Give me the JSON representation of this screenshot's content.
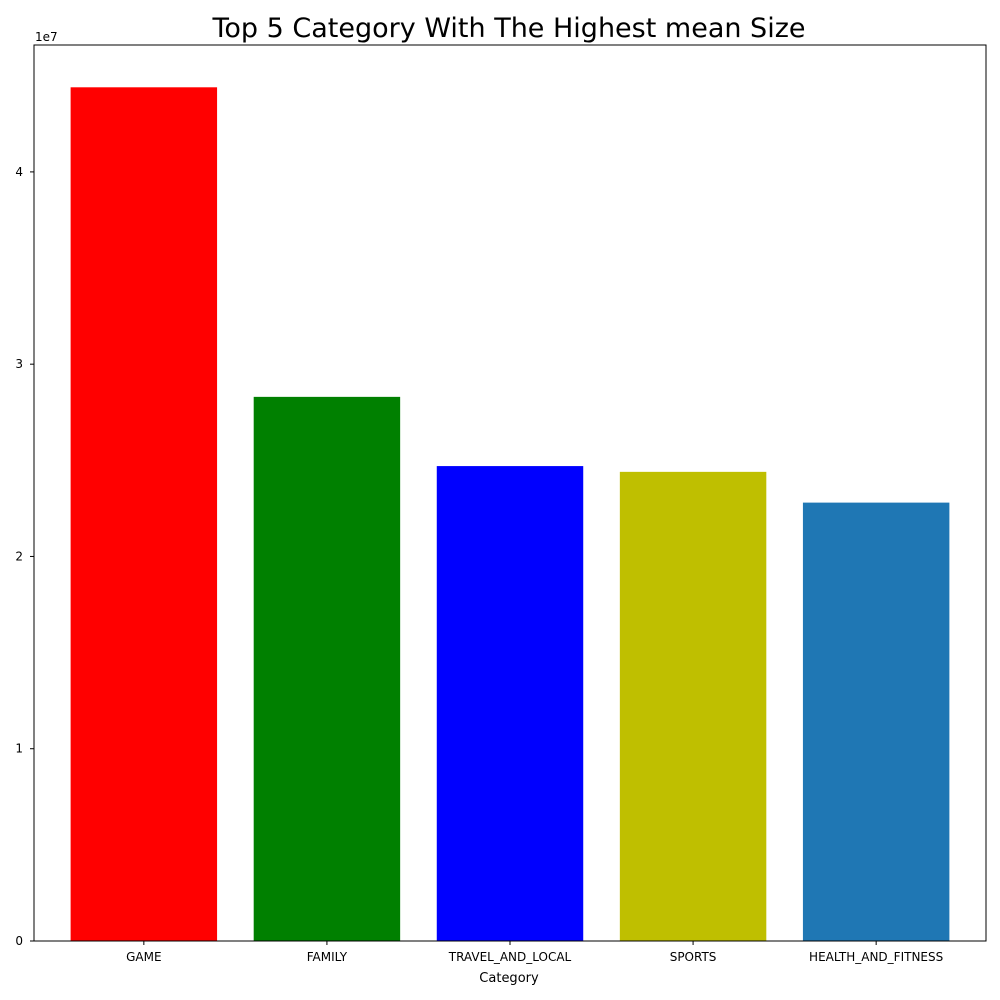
{
  "chart_data": {
    "type": "bar",
    "title": "Top 5 Category With The Highest mean Size",
    "xlabel": "Category",
    "ylabel": "",
    "offset_label": "1e7",
    "categories": [
      "GAME",
      "FAMILY",
      "TRAVEL_AND_LOCAL",
      "SPORTS",
      "HEALTH_AND_FITNESS"
    ],
    "values": [
      44400000,
      28300000,
      24700000,
      24400000,
      22800000
    ],
    "colors": [
      "#ff0000",
      "#008000",
      "#0000ff",
      "#bfbf00",
      "#1f77b4"
    ],
    "ylim": [
      0,
      46600000
    ],
    "y_ticks": [
      0,
      10000000,
      20000000,
      30000000,
      40000000
    ],
    "y_tick_labels": [
      "0",
      "1",
      "2",
      "3",
      "4"
    ],
    "grid": false,
    "legend": "none"
  }
}
